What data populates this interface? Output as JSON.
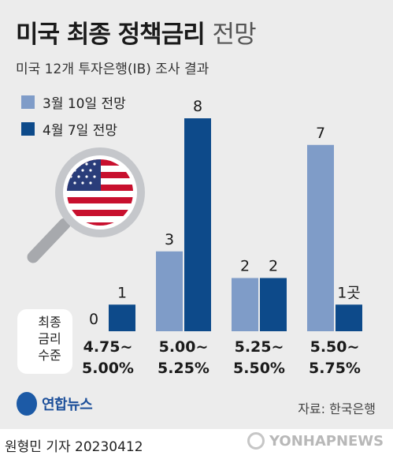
{
  "header": {
    "title_main": "미국 최종 정책금리",
    "title_light": "전망",
    "subtitle": "미국 12개 투자은행(IB) 조사 결과"
  },
  "colors": {
    "series1": "#7f9cc8",
    "series2": "#0d4a8a"
  },
  "icons": {
    "magnifier": "magnifier-with-us-flag"
  },
  "row_label": {
    "line1": "최종",
    "line2": "금리",
    "line3": "수준"
  },
  "chart_data": {
    "type": "bar",
    "categories": [
      {
        "line1": "4.75~",
        "line2": "5.00%"
      },
      {
        "line1": "5.00~",
        "line2": "5.25%"
      },
      {
        "line1": "5.25~",
        "line2": "5.50%"
      },
      {
        "line1": "5.50~",
        "line2": "5.75%"
      }
    ],
    "series": [
      {
        "name": "3월 10일 전망",
        "values": [
          0,
          3,
          2,
          7
        ],
        "labels": [
          "0",
          "3",
          "2",
          "7"
        ]
      },
      {
        "name": "4월 7일 전망",
        "values": [
          1,
          8,
          2,
          1
        ],
        "labels": [
          "1",
          "8",
          "2",
          "1곳"
        ]
      }
    ],
    "ylim": [
      0,
      8
    ],
    "grid": false,
    "legend": "top-left"
  },
  "footer": {
    "logo_text": "연합뉴스",
    "source": "자료: 한국은행",
    "author": "원형민 기자  20230412",
    "agency": "YONHAPNEWS"
  }
}
